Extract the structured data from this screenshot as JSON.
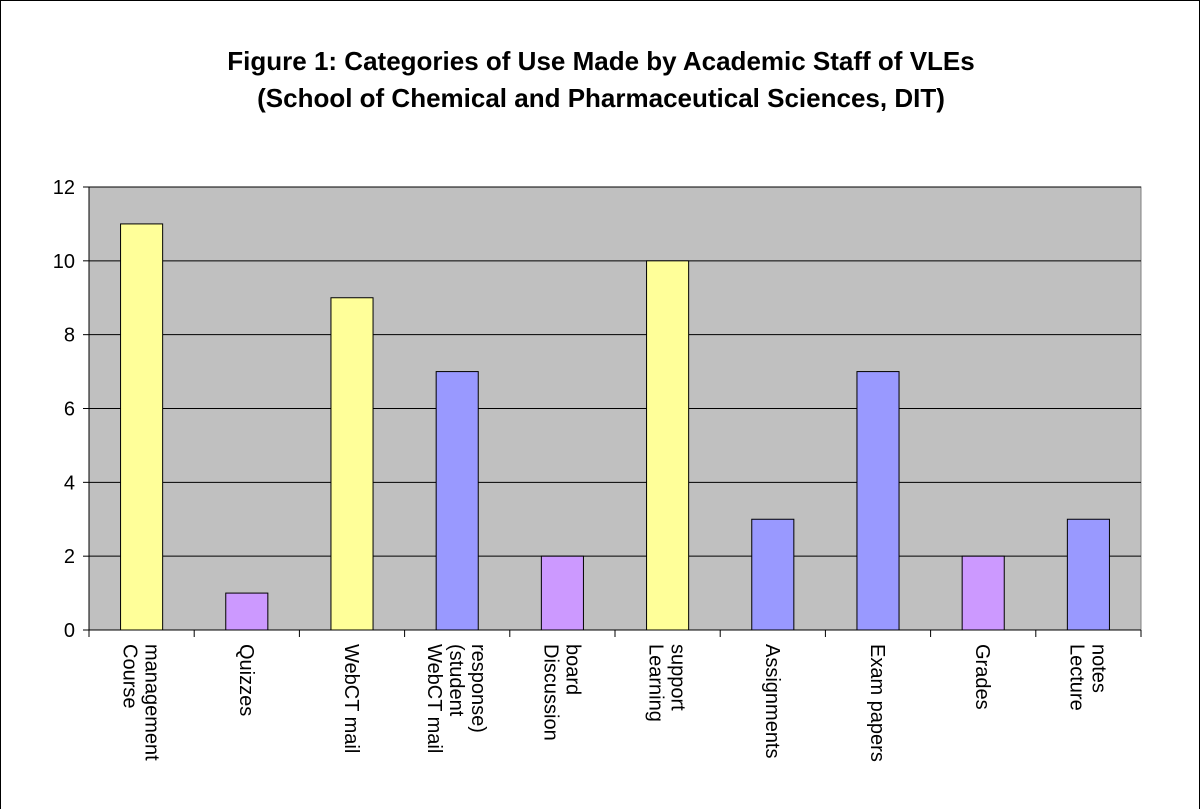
{
  "chart_data": {
    "type": "bar",
    "title": "Figure 1: Categories of Use Made by Academic Staff of VLEs",
    "subtitle": "(School of Chemical and Pharmaceutical Sciences, DIT)",
    "xlabel": "",
    "ylabel": "",
    "ylim": [
      0,
      12
    ],
    "yticks": [
      "0",
      "2",
      "4",
      "6",
      "8",
      "10",
      "12"
    ],
    "grid": true,
    "legend": "none",
    "plot_background": "#C0C0C0",
    "categories": [
      [
        "Course",
        "management"
      ],
      [
        "Quizzes"
      ],
      [
        "WebCT mail"
      ],
      [
        "WebCT mail",
        "(student",
        "response)"
      ],
      [
        "Discussion",
        "board"
      ],
      [
        "Learning",
        "support"
      ],
      [
        "Assignments"
      ],
      [
        "Exam papers"
      ],
      [
        "Grades"
      ],
      [
        "Lecture",
        "notes"
      ]
    ],
    "values": [
      11,
      1,
      9,
      7,
      2,
      10,
      3,
      7,
      2,
      3
    ],
    "bar_colors": [
      "#FFFF99",
      "#CC99FF",
      "#FFFF99",
      "#9999FF",
      "#CC99FF",
      "#FFFF99",
      "#9999FF",
      "#9999FF",
      "#CC99FF",
      "#9999FF"
    ]
  }
}
